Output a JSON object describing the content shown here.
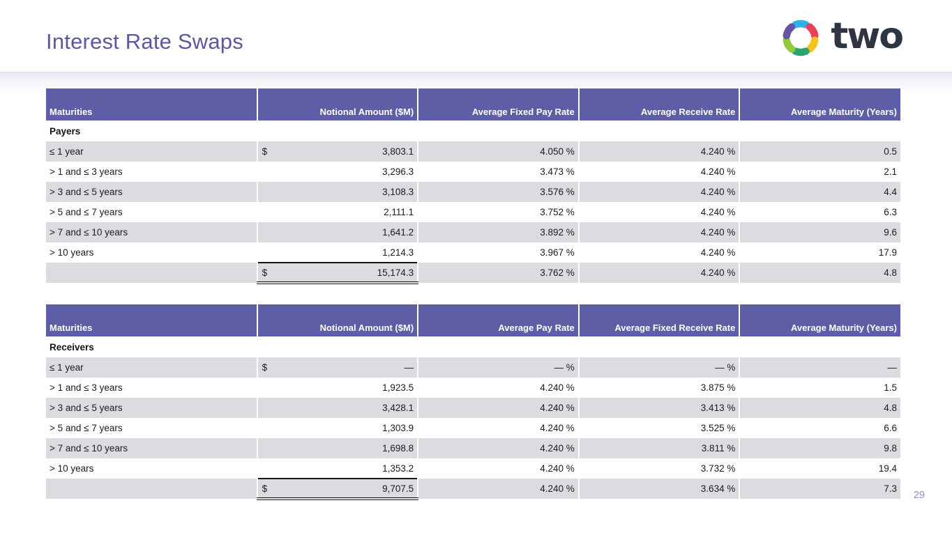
{
  "slide": {
    "title": "Interest Rate Swaps",
    "page_number": "29",
    "logo": {
      "text": "two",
      "icon": "two-hex-star-icon",
      "segment_colors": [
        "#2cb4e8",
        "#e8415a",
        "#f7c21e",
        "#2aa571",
        "#94c93d",
        "#6753a3"
      ]
    },
    "colors": {
      "header_bg": "#5e5ea6",
      "row_alt_bg": "#dcdce0",
      "title": "#5a58a3",
      "page_number": "#8d8dc2",
      "logo_text": "#2d3442"
    }
  },
  "tables": [
    {
      "name": "payers",
      "group_label": "Payers",
      "headers": [
        "Maturities",
        "Notional Amount ($M)",
        "Average Fixed Pay Rate",
        "Average Receive Rate",
        "Average Maturity (Years)"
      ],
      "rows": [
        [
          "≤ 1 year",
          "$",
          "3,803.1",
          "4.050 %",
          "4.240 %",
          "0.5"
        ],
        [
          "> 1 and ≤ 3 years",
          "",
          "3,296.3",
          "3.473 %",
          "4.240 %",
          "2.1"
        ],
        [
          "> 3 and ≤ 5 years",
          "",
          "3,108.3",
          "3.576 %",
          "4.240 %",
          "4.4"
        ],
        [
          "> 5 and ≤ 7 years",
          "",
          "2,111.1",
          "3.752 %",
          "4.240 %",
          "6.3"
        ],
        [
          "> 7 and ≤ 10 years",
          "",
          "1,641.2",
          "3.892 %",
          "4.240 %",
          "9.6"
        ],
        [
          "> 10 years",
          "",
          "1,214.3",
          "3.967 %",
          "4.240 %",
          "17.9"
        ]
      ],
      "total_row": [
        "",
        "$",
        "15,174.3",
        "3.762 %",
        "4.240 %",
        "4.8"
      ]
    },
    {
      "name": "receivers",
      "group_label": "Receivers",
      "headers": [
        "Maturities",
        "Notional Amount ($M)",
        "Average Pay Rate",
        "Average Fixed Receive Rate",
        "Average Maturity (Years)"
      ],
      "rows": [
        [
          "≤ 1 year",
          "$",
          "—",
          "— %",
          "— %",
          "—"
        ],
        [
          "> 1 and ≤ 3 years",
          "",
          "1,923.5",
          "4.240 %",
          "3.875 %",
          "1.5"
        ],
        [
          "> 3 and ≤ 5 years",
          "",
          "3,428.1",
          "4.240 %",
          "3.413 %",
          "4.8"
        ],
        [
          "> 5 and ≤ 7 years",
          "",
          "1,303.9",
          "4.240 %",
          "3.525 %",
          "6.6"
        ],
        [
          "> 7 and ≤ 10 years",
          "",
          "1,698.8",
          "4.240 %",
          "3.811 %",
          "9.8"
        ],
        [
          "> 10 years",
          "",
          "1,353.2",
          "4.240 %",
          "3.732 %",
          "19.4"
        ]
      ],
      "total_row": [
        "",
        "$",
        "9,707.5",
        "4.240 %",
        "3.634 %",
        "7.3"
      ]
    }
  ]
}
